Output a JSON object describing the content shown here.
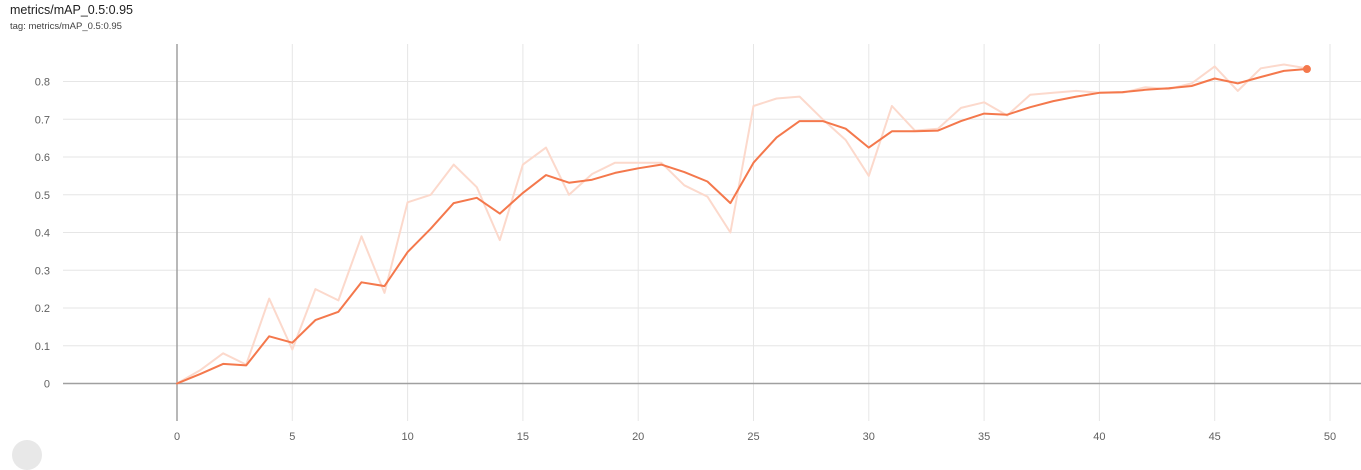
{
  "header": {
    "title": "metrics/mAP_0.5:0.95",
    "tag": "tag: metrics/mAP_0.5:0.95"
  },
  "colors": {
    "smoothed": "#f4784c",
    "raw": "#fcd9cc",
    "grid": "#e6e6e6",
    "zero_axis": "#a0a0a0"
  },
  "chart_data": {
    "type": "line",
    "title": "metrics/mAP_0.5:0.95",
    "xlabel": "",
    "ylabel": "",
    "xlim": [
      -5,
      51
    ],
    "ylim": [
      -0.1,
      0.9
    ],
    "x_ticks": [
      0,
      5,
      10,
      15,
      20,
      25,
      30,
      35,
      40,
      45,
      50
    ],
    "y_ticks": [
      0,
      0.1,
      0.2,
      0.3,
      0.4,
      0.5,
      0.6,
      0.7,
      0.8
    ],
    "grid": true,
    "x": [
      0,
      1,
      2,
      3,
      4,
      5,
      6,
      7,
      8,
      9,
      10,
      11,
      12,
      13,
      14,
      15,
      16,
      17,
      18,
      19,
      20,
      21,
      22,
      23,
      24,
      25,
      26,
      27,
      28,
      29,
      30,
      31,
      32,
      33,
      34,
      35,
      36,
      37,
      38,
      39,
      40,
      41,
      42,
      43,
      44,
      45,
      46,
      47,
      48,
      49
    ],
    "series": [
      {
        "values": [
          0.0,
          0.035,
          0.08,
          0.05,
          0.225,
          0.09,
          0.25,
          0.22,
          0.39,
          0.24,
          0.48,
          0.5,
          0.58,
          0.52,
          0.38,
          0.58,
          0.625,
          0.5,
          0.555,
          0.585,
          0.585,
          0.585,
          0.525,
          0.495,
          0.4,
          0.735,
          0.755,
          0.76,
          0.7,
          0.645,
          0.55,
          0.735,
          0.67,
          0.675,
          0.73,
          0.745,
          0.71,
          0.765,
          0.77,
          0.775,
          0.77,
          0.77,
          0.785,
          0.78,
          0.795,
          0.84,
          0.775,
          0.835,
          0.845,
          0.835
        ]
      },
      {
        "values": [
          0.0,
          0.025,
          0.052,
          0.048,
          0.125,
          0.108,
          0.168,
          0.19,
          0.268,
          0.258,
          0.348,
          0.41,
          0.478,
          0.492,
          0.45,
          0.505,
          0.552,
          0.532,
          0.54,
          0.558,
          0.57,
          0.58,
          0.56,
          0.535,
          0.478,
          0.585,
          0.652,
          0.695,
          0.695,
          0.675,
          0.625,
          0.668,
          0.668,
          0.67,
          0.695,
          0.715,
          0.712,
          0.732,
          0.748,
          0.76,
          0.77,
          0.772,
          0.778,
          0.782,
          0.788,
          0.808,
          0.795,
          0.812,
          0.828,
          0.833
        ]
      }
    ]
  }
}
